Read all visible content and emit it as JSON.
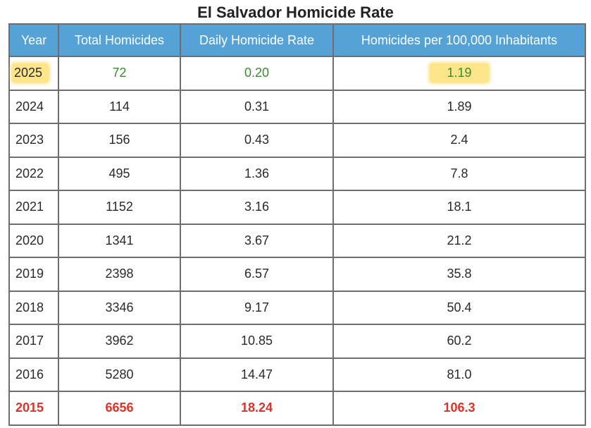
{
  "title": "El Salvador Homicide Rate",
  "columns": {
    "year": "Year",
    "total": "Total Homicides",
    "daily": "Daily Homicide Rate",
    "per100k": "Homicides per 100,000 Inhabitants"
  },
  "rows": [
    {
      "year": "2025",
      "total": "72",
      "daily": "0.20",
      "per100k": "1.19"
    },
    {
      "year": "2024",
      "total": "114",
      "daily": "0.31",
      "per100k": "1.89"
    },
    {
      "year": "2023",
      "total": "156",
      "daily": "0.43",
      "per100k": "2.4"
    },
    {
      "year": "2022",
      "total": "495",
      "daily": "1.36",
      "per100k": "7.8"
    },
    {
      "year": "2021",
      "total": "1152",
      "daily": "3.16",
      "per100k": "18.1"
    },
    {
      "year": "2020",
      "total": "1341",
      "daily": "3.67",
      "per100k": "21.2"
    },
    {
      "year": "2019",
      "total": "2398",
      "daily": "6.57",
      "per100k": "35.8"
    },
    {
      "year": "2018",
      "total": "3346",
      "daily": "9.17",
      "per100k": "50.4"
    },
    {
      "year": "2017",
      "total": "3962",
      "daily": "10.85",
      "per100k": "60.2"
    },
    {
      "year": "2016",
      "total": "5280",
      "daily": "14.47",
      "per100k": "81.0"
    },
    {
      "year": "2015",
      "total": "6656",
      "daily": "18.24",
      "per100k": "106.3"
    }
  ],
  "colors": {
    "header_bg": "#54a2d6",
    "current_year_text": "#3c8a30",
    "baseline_year_text": "#d9352b",
    "highlight": "#fde68a"
  }
}
